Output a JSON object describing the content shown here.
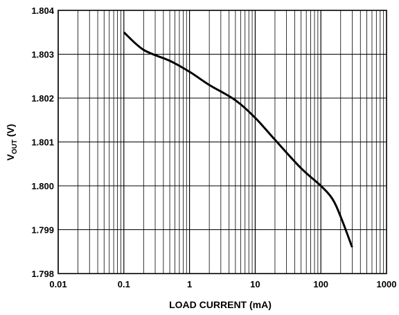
{
  "chart_data": {
    "type": "line",
    "title": "",
    "xlabel": "LOAD CURRENT (mA)",
    "ylabel": {
      "main": "V",
      "sub": "OUT",
      "unit": " (V)"
    },
    "x_scale": "log",
    "xlim": [
      0.01,
      1000
    ],
    "ylim": [
      1.798,
      1.804
    ],
    "grid": true,
    "legend": "none",
    "x_ticks": [
      "0.01",
      "0.1",
      "1",
      "10",
      "100",
      "1000"
    ],
    "y_ticks": [
      "1.798",
      "1.799",
      "1.800",
      "1.801",
      "1.802",
      "1.803",
      "1.804"
    ],
    "series": [
      {
        "x": [
          0.1,
          0.2,
          0.5,
          1,
          2,
          5,
          10,
          20,
          50,
          100,
          150,
          200,
          300
        ],
        "y": [
          1.8035,
          1.8031,
          1.80285,
          1.8026,
          1.8023,
          1.80195,
          1.80155,
          1.80105,
          1.8004,
          1.8,
          1.7997,
          1.7993,
          1.7986
        ]
      }
    ],
    "colors": {
      "line": "#000000",
      "grid": "#000000",
      "background": "#ffffff"
    }
  }
}
